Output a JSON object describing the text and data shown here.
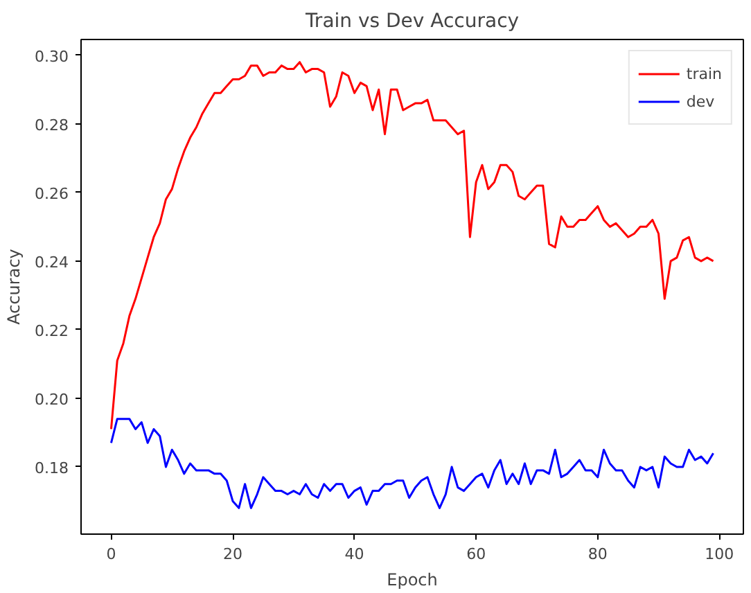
{
  "chart_data": {
    "type": "line",
    "title": "Train vs Dev Accuracy",
    "xlabel": "Epoch",
    "ylabel": "Accuracy",
    "x": [
      0,
      1,
      2,
      3,
      4,
      5,
      6,
      7,
      8,
      9,
      10,
      11,
      12,
      13,
      14,
      15,
      16,
      17,
      18,
      19,
      20,
      21,
      22,
      23,
      24,
      25,
      26,
      27,
      28,
      29,
      30,
      31,
      32,
      33,
      34,
      35,
      36,
      37,
      38,
      39,
      40,
      41,
      42,
      43,
      44,
      45,
      46,
      47,
      48,
      49,
      50,
      51,
      52,
      53,
      54,
      55,
      56,
      57,
      58,
      59,
      60,
      61,
      62,
      63,
      64,
      65,
      66,
      67,
      68,
      69,
      70,
      71,
      72,
      73,
      74,
      75,
      76,
      77,
      78,
      79,
      80,
      81,
      82,
      83,
      84,
      85,
      86,
      87,
      88,
      89,
      90,
      91,
      92,
      93,
      94,
      95,
      96,
      97,
      98,
      99
    ],
    "series": [
      {
        "name": "train",
        "color": "#ff0000",
        "values": [
          0.191,
          0.211,
          0.216,
          0.224,
          0.229,
          0.235,
          0.241,
          0.247,
          0.251,
          0.258,
          0.261,
          0.267,
          0.272,
          0.276,
          0.279,
          0.283,
          0.286,
          0.289,
          0.289,
          0.291,
          0.293,
          0.293,
          0.294,
          0.297,
          0.297,
          0.294,
          0.295,
          0.295,
          0.297,
          0.296,
          0.296,
          0.298,
          0.295,
          0.296,
          0.296,
          0.295,
          0.285,
          0.288,
          0.295,
          0.294,
          0.289,
          0.292,
          0.291,
          0.284,
          0.29,
          0.277,
          0.29,
          0.29,
          0.284,
          0.285,
          0.286,
          0.286,
          0.287,
          0.281,
          0.281,
          0.281,
          0.279,
          0.277,
          0.278,
          0.247,
          0.263,
          0.268,
          0.261,
          0.263,
          0.268,
          0.268,
          0.266,
          0.259,
          0.258,
          0.26,
          0.262,
          0.262,
          0.245,
          0.244,
          0.253,
          0.25,
          0.25,
          0.252,
          0.252,
          0.254,
          0.256,
          0.252,
          0.25,
          0.251,
          0.249,
          0.247,
          0.248,
          0.25,
          0.25,
          0.252,
          0.248,
          0.229,
          0.24,
          0.241,
          0.246,
          0.247,
          0.241,
          0.24,
          0.241,
          0.24
        ]
      },
      {
        "name": "dev",
        "color": "#0000ff",
        "values": [
          0.187,
          0.194,
          0.194,
          0.194,
          0.191,
          0.193,
          0.187,
          0.191,
          0.189,
          0.18,
          0.185,
          0.182,
          0.178,
          0.181,
          0.179,
          0.179,
          0.179,
          0.178,
          0.178,
          0.176,
          0.17,
          0.168,
          0.175,
          0.168,
          0.172,
          0.177,
          0.175,
          0.173,
          0.173,
          0.172,
          0.173,
          0.172,
          0.175,
          0.172,
          0.171,
          0.175,
          0.173,
          0.175,
          0.175,
          0.171,
          0.173,
          0.174,
          0.169,
          0.173,
          0.173,
          0.175,
          0.175,
          0.176,
          0.176,
          0.171,
          0.174,
          0.176,
          0.177,
          0.172,
          0.168,
          0.172,
          0.18,
          0.174,
          0.173,
          0.175,
          0.177,
          0.178,
          0.174,
          0.179,
          0.182,
          0.175,
          0.178,
          0.175,
          0.181,
          0.175,
          0.179,
          0.179,
          0.178,
          0.185,
          0.177,
          0.178,
          0.18,
          0.182,
          0.179,
          0.179,
          0.177,
          0.185,
          0.181,
          0.179,
          0.179,
          0.176,
          0.174,
          0.18,
          0.179,
          0.18,
          0.174,
          0.183,
          0.181,
          0.18,
          0.18,
          0.185,
          0.182,
          0.183,
          0.181,
          0.184
        ]
      }
    ],
    "xlim": [
      -4.95,
      103.95
    ],
    "ylim": [
      0.1604,
      0.3046
    ],
    "xticks": [
      0,
      20,
      40,
      60,
      80,
      100
    ],
    "yticks": [
      0.18,
      {
        "value": 0.2,
        "label": "0.20"
      },
      0.22,
      0.24,
      0.26,
      0.28,
      {
        "value": 0.3,
        "label": "0.30"
      }
    ],
    "legend": "top right",
    "grid": false
  }
}
